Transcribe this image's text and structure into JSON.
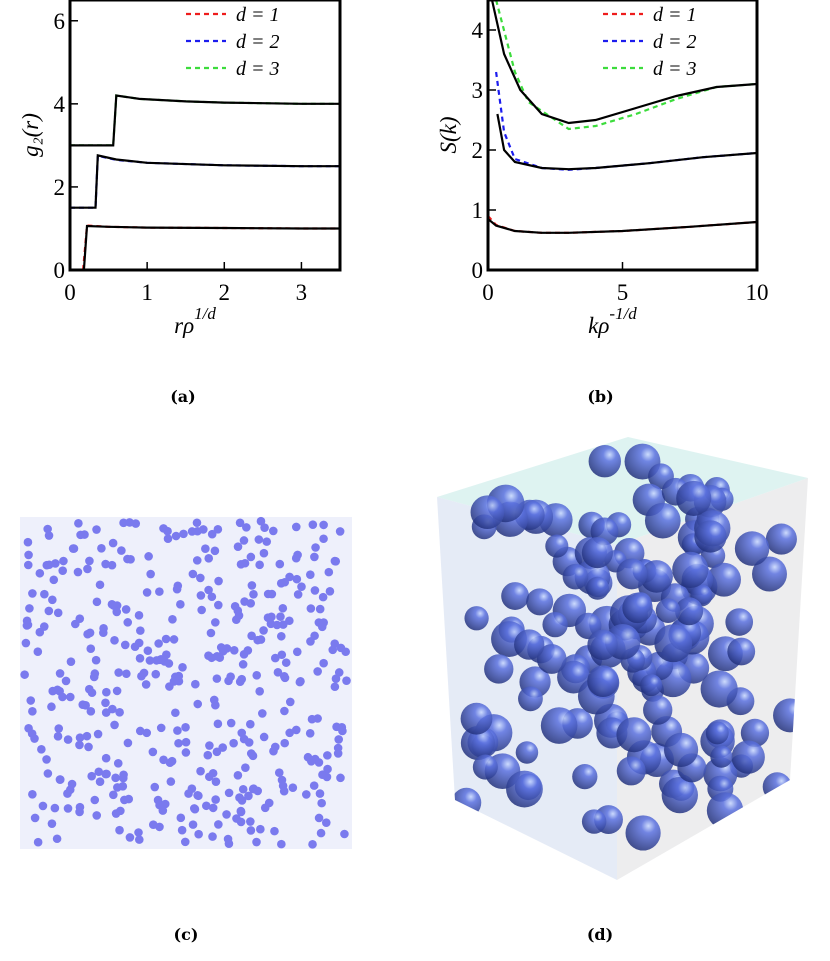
{
  "chart_data": [
    {
      "type": "line",
      "ylabel": "g₂(r)",
      "xlabel": "rρ",
      "xlabel_sup": "1/d",
      "caption": "(a)",
      "xlim": [
        0,
        3.5
      ],
      "ylim": [
        0,
        6.5
      ],
      "xticks": [
        0,
        1,
        2,
        3
      ],
      "yticks": [
        0,
        2,
        4,
        6
      ],
      "series": [
        {
          "name": "d = 1",
          "color": "#ee1c1c",
          "linestyle": "dashed",
          "x": [
            0.17,
            0.22,
            0.5,
            1,
            2,
            3,
            3.5
          ],
          "values": [
            0,
            1.07,
            1.04,
            1.02,
            1.01,
            1.0,
            1.0
          ]
        },
        {
          "name": "d = 2",
          "color": "#1c1cee",
          "linestyle": "dashed",
          "x": [
            0,
            0.33,
            0.36,
            0.6,
            1,
            2,
            3,
            3.5
          ],
          "values": [
            1.5,
            1.5,
            2.75,
            2.65,
            2.58,
            2.52,
            2.5,
            2.5
          ]
        },
        {
          "name": "d = 3",
          "color": "#3cdc3c",
          "linestyle": "dashed",
          "x": [
            0,
            0.56,
            0.6,
            0.9,
            1.5,
            2,
            3,
            3.5
          ],
          "values": [
            3,
            3,
            4.2,
            4.12,
            4.06,
            4.03,
            4.0,
            4.0
          ]
        },
        {
          "color": "#000000",
          "linestyle": "solid",
          "x": [
            0.18,
            0.22,
            0.5,
            1,
            2,
            3,
            3.5
          ],
          "values": [
            0,
            1.06,
            1.04,
            1.02,
            1.01,
            1.0,
            1.0
          ]
        },
        {
          "color": "#000000",
          "linestyle": "solid",
          "x": [
            0,
            0.33,
            0.36,
            0.6,
            1,
            2,
            3,
            3.5
          ],
          "values": [
            1.5,
            1.5,
            2.76,
            2.66,
            2.58,
            2.52,
            2.5,
            2.5
          ]
        },
        {
          "color": "#000000",
          "linestyle": "solid",
          "x": [
            0,
            0.56,
            0.6,
            0.9,
            1.5,
            2,
            3,
            3.5
          ],
          "values": [
            3,
            3,
            4.2,
            4.12,
            4.06,
            4.03,
            4.0,
            4.0
          ]
        }
      ]
    },
    {
      "type": "line",
      "ylabel": "S(k)",
      "xlabel": "kρ",
      "xlabel_sup": "-1/d",
      "caption": "(b)",
      "xlim": [
        0,
        10
      ],
      "ylim": [
        0,
        4.5
      ],
      "xticks": [
        0,
        5,
        10
      ],
      "yticks": [
        0,
        1,
        2,
        3,
        4
      ],
      "series": [
        {
          "name": "d = 1",
          "color": "#ee1c1c",
          "linestyle": "dashed",
          "x": [
            0,
            0.3,
            1,
            2,
            3,
            5,
            7.5,
            10
          ],
          "values": [
            0.9,
            0.75,
            0.65,
            0.62,
            0.62,
            0.65,
            0.72,
            0.8
          ]
        },
        {
          "name": "d = 2",
          "color": "#1c1cee",
          "linestyle": "dashed",
          "x": [
            0.3,
            0.6,
            1,
            2,
            3,
            4,
            6,
            8,
            10
          ],
          "values": [
            3.3,
            2.3,
            1.85,
            1.7,
            1.67,
            1.7,
            1.78,
            1.88,
            1.95
          ]
        },
        {
          "name": "d = 3",
          "color": "#3cdc3c",
          "linestyle": "dashed",
          "x": [
            0.3,
            1,
            1.5,
            2.5,
            3,
            4,
            5.5,
            7,
            8.5,
            10
          ],
          "values": [
            4.5,
            3.3,
            2.8,
            2.5,
            2.35,
            2.4,
            2.6,
            2.85,
            3.05,
            3.1
          ]
        },
        {
          "color": "#000000",
          "linestyle": "solid",
          "x": [
            0,
            0.3,
            1,
            2,
            3,
            5,
            7.5,
            10
          ],
          "values": [
            0.85,
            0.74,
            0.65,
            0.62,
            0.62,
            0.65,
            0.72,
            0.8
          ]
        },
        {
          "color": "#000000",
          "linestyle": "solid",
          "x": [
            0.35,
            0.6,
            1,
            2,
            3,
            4,
            6,
            8,
            10
          ],
          "values": [
            2.6,
            2.0,
            1.8,
            1.7,
            1.68,
            1.7,
            1.78,
            1.88,
            1.95
          ]
        },
        {
          "color": "#000000",
          "linestyle": "solid",
          "x": [
            0.15,
            0.6,
            1.2,
            2,
            3,
            4,
            5.5,
            7,
            8.5,
            10
          ],
          "values": [
            4.5,
            3.6,
            3.0,
            2.6,
            2.45,
            2.5,
            2.7,
            2.9,
            3.05,
            3.1
          ]
        }
      ]
    }
  ],
  "captions": {
    "c": "(c)",
    "d": "(d)"
  }
}
